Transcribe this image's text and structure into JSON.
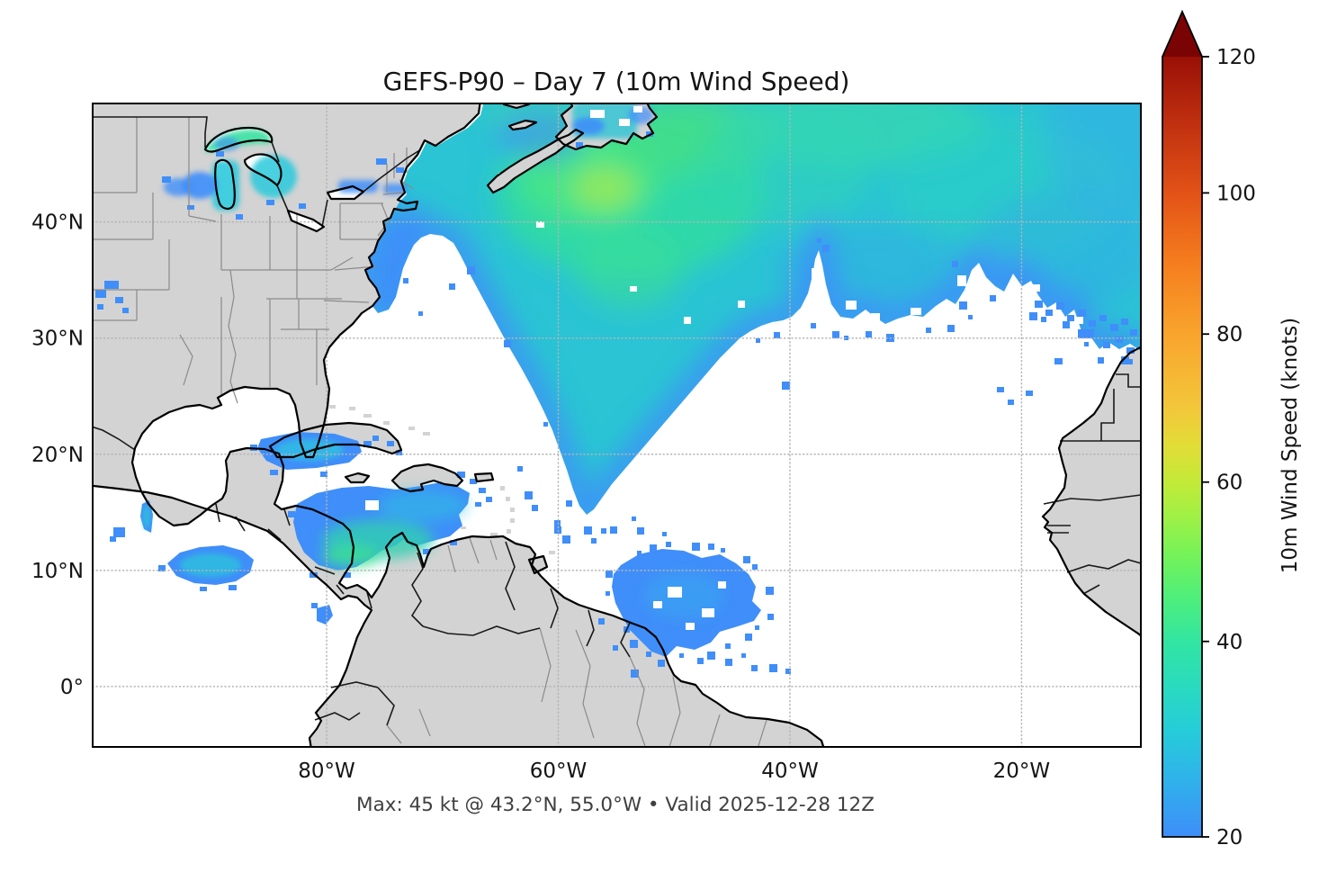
{
  "title": "GEFS-P90 – Day 7 (10m Wind Speed)",
  "subtitle": "Max: 45 kt @ 43.2°N, 55.0°W • Valid 2025-12-28 12Z",
  "axes": {
    "lon_range": [
      -100.2,
      -9.7
    ],
    "lat_range": [
      -5.2,
      50.2
    ],
    "x_ticks": [
      {
        "value": -80,
        "label": "80°W"
      },
      {
        "value": -60,
        "label": "60°W"
      },
      {
        "value": -40,
        "label": "40°W"
      },
      {
        "value": -20,
        "label": "20°W"
      }
    ],
    "y_ticks": [
      {
        "value": 40,
        "label": "40°N"
      },
      {
        "value": 30,
        "label": "30°N"
      },
      {
        "value": 20,
        "label": "20°N"
      },
      {
        "value": 10,
        "label": "10°N"
      },
      {
        "value": 0,
        "label": "0°"
      }
    ],
    "grid": "dotted"
  },
  "colorbar": {
    "label": "10m Wind Speed (knots)",
    "min": 20,
    "max": 120,
    "gamma": 0.86,
    "ticks": [
      20,
      40,
      60,
      80,
      100,
      120
    ],
    "extend": "max",
    "arrow_color": "#7a0403",
    "stops": [
      [
        20,
        "#3e8ef9"
      ],
      [
        25,
        "#2fb3ea"
      ],
      [
        30,
        "#25cdd8"
      ],
      [
        35,
        "#2adbbd"
      ],
      [
        40,
        "#32e5a1"
      ],
      [
        45,
        "#4dee7d"
      ],
      [
        50,
        "#70f25c"
      ],
      [
        55,
        "#9bf147"
      ],
      [
        60,
        "#c3ea38"
      ],
      [
        65,
        "#e2dc37"
      ],
      [
        70,
        "#f3c63a"
      ],
      [
        80,
        "#f9a42d"
      ],
      [
        90,
        "#f57d1e"
      ],
      [
        100,
        "#e25217"
      ],
      [
        110,
        "#c03010"
      ],
      [
        120,
        "#9a1006"
      ]
    ]
  },
  "palette": {
    "land": "#d3d3d3",
    "coastline": "#000000",
    "state_border": "#8a8a8a",
    "gridline": "#b4b4b4",
    "field_edge_blue": "#3f8ef9",
    "field_cyan": "#2ac4d4",
    "field_green": "#3edf92",
    "field_max_yellow_green": "#90e85e"
  },
  "chart_data": {
    "type": "heatmap",
    "title": "GEFS-P90 – Day 7 (10m Wind Speed)",
    "variable": "10m wind speed, 90th percentile (GEFS ensemble), forecast day 7",
    "units": "knots",
    "valid": "2025-12-28 12Z",
    "colorbar_range": [
      20,
      120
    ],
    "colorbar_ticks": [
      20,
      40,
      60,
      80,
      100,
      120
    ],
    "masked_below": 20,
    "extent": {
      "lon": [
        -100.2,
        -9.7
      ],
      "lat": [
        -5.2,
        50.2
      ]
    },
    "max_point": {
      "value_kt": 45,
      "lat": 43.2,
      "lon": -55.0
    },
    "features": [
      {
        "name": "north-atlantic-storm-swath",
        "lon": [
          -72,
          -10
        ],
        "lat": [
          28,
          50
        ],
        "peak_kt": 45,
        "typical_kt": [
          25,
          40
        ]
      },
      {
        "name": "great-lakes-patch",
        "lon": [
          -93,
          -76
        ],
        "lat": [
          41,
          49
        ],
        "peak_kt": 35
      },
      {
        "name": "gulf-stream-coastal-band",
        "lon": [
          -75,
          -70
        ],
        "lat": [
          33,
          41
        ],
        "peak_kt": 25
      },
      {
        "name": "south-of-cuba-patch",
        "lon": [
          -86,
          -77
        ],
        "lat": [
          20,
          23
        ],
        "peak_kt": 27
      },
      {
        "name": "southern-caribbean-patch",
        "lon": [
          -82,
          -67
        ],
        "lat": [
          11,
          17
        ],
        "peak_kt": 35
      },
      {
        "name": "eastern-pacific-papagayo-patch",
        "lon": [
          -94,
          -86
        ],
        "lat": [
          9,
          12
        ],
        "peak_kt": 30
      },
      {
        "name": "tehuantepec-sliver",
        "lon": [
          -96,
          -95
        ],
        "lat": [
          12,
          16
        ],
        "peak_kt": 28
      },
      {
        "name": "tropical-atlantic-patch",
        "lon": [
          -52,
          -38
        ],
        "lat": [
          5,
          12
        ],
        "peak_kt": 25
      },
      {
        "name": "canary-morocco-specks",
        "lon": [
          -20,
          -10
        ],
        "lat": [
          31,
          36
        ],
        "peak_kt": 22
      }
    ]
  }
}
